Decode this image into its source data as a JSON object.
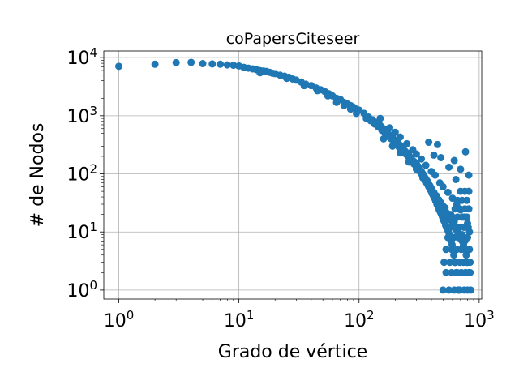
{
  "chart_data": {
    "type": "scatter",
    "title": "coPapersCiteseer",
    "xlabel": "Grado de vértice",
    "ylabel": "# de Nodos",
    "xscale": "log",
    "yscale": "log",
    "xlim": [
      0.75,
      1050
    ],
    "ylim": [
      0.7,
      13000
    ],
    "grid": true,
    "marker_color": "#1f77b4",
    "xticks": [
      {
        "value": 1,
        "base": "10",
        "exp": "0"
      },
      {
        "value": 10,
        "base": "10",
        "exp": "1"
      },
      {
        "value": 100,
        "base": "10",
        "exp": "2"
      },
      {
        "value": 1000,
        "base": "10",
        "exp": "3"
      }
    ],
    "yticks": [
      {
        "value": 1,
        "base": "10",
        "exp": "0"
      },
      {
        "value": 10,
        "base": "10",
        "exp": "1"
      },
      {
        "value": 100,
        "base": "10",
        "exp": "2"
      },
      {
        "value": 1000,
        "base": "10",
        "exp": "3"
      },
      {
        "value": 10000,
        "base": "10",
        "exp": "4"
      }
    ],
    "series": [
      {
        "points": [
          [
            1,
            7100
          ],
          [
            2,
            7700
          ],
          [
            3,
            8200
          ],
          [
            4,
            8300
          ],
          [
            5,
            7900
          ],
          [
            6,
            7800
          ],
          [
            7,
            7700
          ],
          [
            8,
            7500
          ],
          [
            9,
            7400
          ],
          [
            10,
            7200
          ],
          [
            11,
            6800
          ],
          [
            12,
            6600
          ],
          [
            13,
            6400
          ],
          [
            14,
            6200
          ],
          [
            15,
            6000
          ],
          [
            16,
            5900
          ],
          [
            17,
            5800
          ],
          [
            18,
            5600
          ],
          [
            19,
            5400
          ],
          [
            20,
            5300
          ],
          [
            22,
            5000
          ],
          [
            24,
            4800
          ],
          [
            26,
            4600
          ],
          [
            28,
            4300
          ],
          [
            30,
            4100
          ],
          [
            33,
            3800
          ],
          [
            36,
            3500
          ],
          [
            40,
            3300
          ],
          [
            44,
            3000
          ],
          [
            48,
            2800
          ],
          [
            52,
            2600
          ],
          [
            56,
            2400
          ],
          [
            60,
            2200
          ],
          [
            65,
            2000
          ],
          [
            70,
            1900
          ],
          [
            75,
            1700
          ],
          [
            80,
            1600
          ],
          [
            85,
            1500
          ],
          [
            90,
            1400
          ],
          [
            95,
            1300
          ],
          [
            100,
            1250
          ],
          [
            110,
            1100
          ],
          [
            120,
            950
          ],
          [
            130,
            850
          ],
          [
            140,
            760
          ],
          [
            150,
            680
          ],
          [
            160,
            600
          ],
          [
            170,
            530
          ],
          [
            180,
            470
          ],
          [
            190,
            430
          ],
          [
            200,
            380
          ],
          [
            210,
            340
          ],
          [
            220,
            310
          ],
          [
            230,
            280
          ],
          [
            240,
            250
          ],
          [
            250,
            230
          ],
          [
            260,
            210
          ],
          [
            270,
            190
          ],
          [
            280,
            170
          ],
          [
            290,
            160
          ],
          [
            300,
            150
          ],
          [
            310,
            135
          ],
          [
            320,
            120
          ],
          [
            330,
            110
          ],
          [
            340,
            100
          ],
          [
            350,
            90
          ],
          [
            360,
            82
          ],
          [
            370,
            75
          ],
          [
            380,
            68
          ],
          [
            390,
            62
          ],
          [
            400,
            56
          ],
          [
            420,
            48
          ],
          [
            440,
            42
          ],
          [
            460,
            36
          ],
          [
            480,
            32
          ],
          [
            500,
            28
          ],
          [
            520,
            24
          ],
          [
            540,
            21
          ],
          [
            560,
            18
          ],
          [
            580,
            16
          ],
          [
            600,
            14
          ],
          [
            620,
            12
          ],
          [
            640,
            11
          ],
          [
            660,
            10
          ],
          [
            680,
            9
          ],
          [
            700,
            8
          ],
          [
            720,
            7
          ],
          [
            740,
            6
          ],
          [
            760,
            5
          ],
          [
            780,
            4
          ],
          [
            800,
            3
          ],
          [
            820,
            2
          ],
          [
            840,
            2
          ],
          [
            15,
            5500
          ],
          [
            25,
            4400
          ],
          [
            35,
            3300
          ],
          [
            45,
            2700
          ],
          [
            55,
            2200
          ],
          [
            65,
            1700
          ],
          [
            75,
            1500
          ],
          [
            85,
            1300
          ],
          [
            95,
            1100
          ],
          [
            115,
            900
          ],
          [
            125,
            820
          ],
          [
            135,
            720
          ],
          [
            145,
            640
          ],
          [
            155,
            560
          ],
          [
            165,
            500
          ],
          [
            175,
            440
          ],
          [
            185,
            400
          ],
          [
            195,
            360
          ],
          [
            205,
            320
          ],
          [
            215,
            290
          ],
          [
            225,
            260
          ],
          [
            235,
            240
          ],
          [
            245,
            220
          ],
          [
            255,
            200
          ],
          [
            265,
            180
          ],
          [
            275,
            165
          ],
          [
            285,
            150
          ],
          [
            295,
            140
          ],
          [
            305,
            130
          ],
          [
            315,
            118
          ],
          [
            325,
            105
          ],
          [
            335,
            96
          ],
          [
            345,
            86
          ],
          [
            355,
            78
          ],
          [
            365,
            70
          ],
          [
            375,
            64
          ],
          [
            385,
            58
          ],
          [
            395,
            52
          ],
          [
            405,
            46
          ],
          [
            415,
            42
          ],
          [
            425,
            38
          ],
          [
            435,
            34
          ],
          [
            445,
            30
          ],
          [
            455,
            27
          ],
          [
            465,
            24
          ],
          [
            475,
            22
          ],
          [
            485,
            20
          ],
          [
            495,
            18
          ],
          [
            505,
            16
          ],
          [
            515,
            15
          ],
          [
            525,
            13
          ],
          [
            535,
            12
          ],
          [
            545,
            11
          ],
          [
            555,
            10
          ],
          [
            565,
            9
          ],
          [
            575,
            8
          ],
          [
            585,
            7
          ],
          [
            595,
            6
          ],
          [
            605,
            5
          ],
          [
            615,
            4
          ],
          [
            625,
            3
          ],
          [
            635,
            3
          ],
          [
            645,
            2
          ],
          [
            655,
            2
          ],
          [
            665,
            1
          ],
          [
            675,
            1
          ],
          [
            150,
            900
          ],
          [
            180,
            620
          ],
          [
            200,
            520
          ],
          [
            220,
            430
          ],
          [
            250,
            330
          ],
          [
            280,
            260
          ],
          [
            300,
            220
          ],
          [
            330,
            180
          ],
          [
            360,
            140
          ],
          [
            400,
            110
          ],
          [
            430,
            95
          ],
          [
            470,
            70
          ],
          [
            500,
            60
          ],
          [
            550,
            48
          ],
          [
            600,
            38
          ],
          [
            650,
            30
          ],
          [
            700,
            24
          ],
          [
            750,
            18
          ],
          [
            800,
            14
          ],
          [
            830,
            10
          ],
          [
            160,
            400
          ],
          [
            190,
            300
          ],
          [
            220,
            230
          ],
          [
            260,
            160
          ],
          [
            300,
            120
          ],
          [
            340,
            85
          ],
          [
            380,
            60
          ],
          [
            420,
            45
          ],
          [
            460,
            34
          ],
          [
            520,
            26
          ],
          [
            580,
            20
          ],
          [
            620,
            15
          ],
          [
            680,
            12
          ],
          [
            720,
            9
          ],
          [
            760,
            7
          ],
          [
            800,
            5
          ],
          [
            380,
            350
          ],
          [
            450,
            320
          ],
          [
            560,
            130
          ],
          [
            620,
            170
          ],
          [
            770,
            240
          ],
          [
            420,
            210
          ],
          [
            480,
            190
          ],
          [
            640,
            80
          ],
          [
            700,
            120
          ],
          [
            820,
            95
          ],
          [
            500,
            1
          ],
          [
            560,
            1
          ],
          [
            620,
            1
          ],
          [
            690,
            1
          ],
          [
            750,
            1
          ],
          [
            800,
            1
          ],
          [
            850,
            1
          ],
          [
            530,
            2
          ],
          [
            590,
            2
          ],
          [
            650,
            2
          ],
          [
            710,
            2
          ],
          [
            770,
            2
          ],
          [
            830,
            2
          ],
          [
            510,
            3
          ],
          [
            570,
            3
          ],
          [
            630,
            3
          ],
          [
            690,
            3
          ],
          [
            740,
            3
          ],
          [
            790,
            3
          ],
          [
            840,
            3
          ],
          [
            530,
            5
          ],
          [
            590,
            5
          ],
          [
            650,
            5
          ],
          [
            710,
            5
          ],
          [
            780,
            5
          ],
          [
            830,
            5
          ],
          [
            550,
            8
          ],
          [
            610,
            8
          ],
          [
            670,
            8
          ],
          [
            730,
            8
          ],
          [
            800,
            8
          ],
          [
            570,
            12
          ],
          [
            630,
            12
          ],
          [
            690,
            12
          ],
          [
            750,
            12
          ],
          [
            810,
            12
          ],
          [
            600,
            18
          ],
          [
            660,
            18
          ],
          [
            720,
            18
          ],
          [
            790,
            18
          ],
          [
            630,
            25
          ],
          [
            690,
            25
          ],
          [
            760,
            25
          ],
          [
            820,
            25
          ],
          [
            660,
            35
          ],
          [
            720,
            35
          ],
          [
            790,
            35
          ],
          [
            700,
            50
          ],
          [
            760,
            50
          ],
          [
            820,
            50
          ]
        ]
      }
    ]
  }
}
